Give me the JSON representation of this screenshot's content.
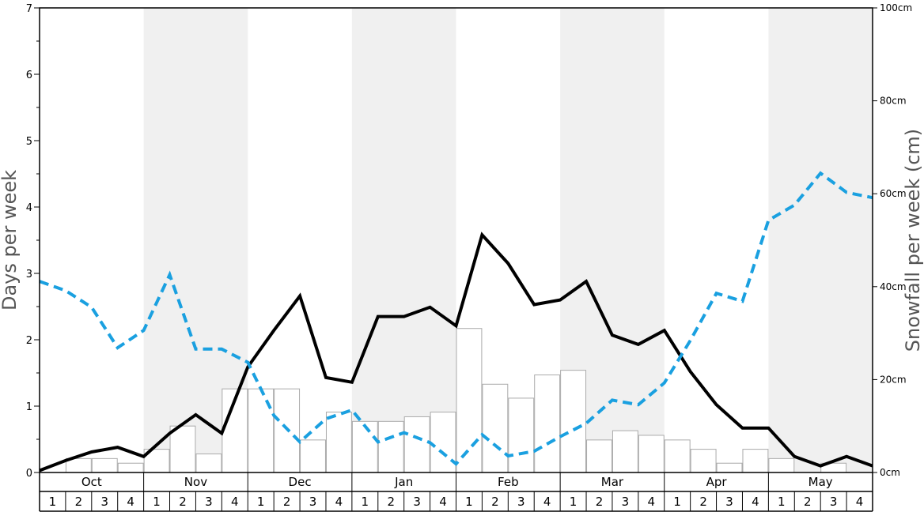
{
  "chart_data": {
    "type": "bar",
    "title": "",
    "ylabel_left": "Days per week",
    "ylabel_right": "Snowfall per week (cm)",
    "ylim_left": [
      0,
      7
    ],
    "ylim_right": [
      0,
      100
    ],
    "left_ticks": [
      "0",
      "1",
      "2",
      "3",
      "4",
      "5",
      "6",
      "7"
    ],
    "right_ticks": [
      "0cm",
      "20cm",
      "40cm",
      "60cm",
      "80cm",
      "100cm"
    ],
    "months": [
      "Oct",
      "Nov",
      "Dec",
      "Jan",
      "Feb",
      "Mar",
      "Apr",
      "May"
    ],
    "weeks": [
      "1",
      "2",
      "3",
      "4"
    ],
    "shaded_months": [
      "Nov",
      "Jan",
      "Mar",
      "May"
    ],
    "shade_color": "#f0f0f0",
    "series": [
      {
        "kind": "bar",
        "axis": "right",
        "color": "#ffffff",
        "stroke": "#aaaaaa",
        "values": [
          0,
          3,
          3,
          2,
          5,
          10,
          4,
          18,
          18,
          18,
          7,
          13,
          11,
          11,
          12,
          13,
          31,
          19,
          16,
          21,
          22,
          7,
          9,
          8,
          7,
          5,
          2,
          5,
          3,
          0,
          2,
          0
        ]
      },
      {
        "kind": "line",
        "axis": "left",
        "color": "#000000",
        "style": "solid",
        "values": [
          0.03,
          0.18,
          0.31,
          0.38,
          0.24,
          0.59,
          0.87,
          0.59,
          1.59,
          2.14,
          2.66,
          1.43,
          1.36,
          2.35,
          2.35,
          2.49,
          2.21,
          3.58,
          3.15,
          2.53,
          2.6,
          2.88,
          2.07,
          1.93,
          2.14,
          1.52,
          1.02,
          0.67,
          0.67,
          0.24,
          0.1,
          0.24,
          0.1
        ]
      },
      {
        "kind": "line",
        "axis": "left",
        "color": "#1aa0e0",
        "style": "dashed",
        "values": [
          2.88,
          2.74,
          2.49,
          1.88,
          2.14,
          2.98,
          1.86,
          1.86,
          1.66,
          0.86,
          0.46,
          0.81,
          0.94,
          0.46,
          0.6,
          0.45,
          0.13,
          0.57,
          0.25,
          0.32,
          0.54,
          0.74,
          1.09,
          1.02,
          1.35,
          1.99,
          2.7,
          2.58,
          3.8,
          4.03,
          4.51,
          4.22,
          4.14
        ]
      }
    ]
  }
}
